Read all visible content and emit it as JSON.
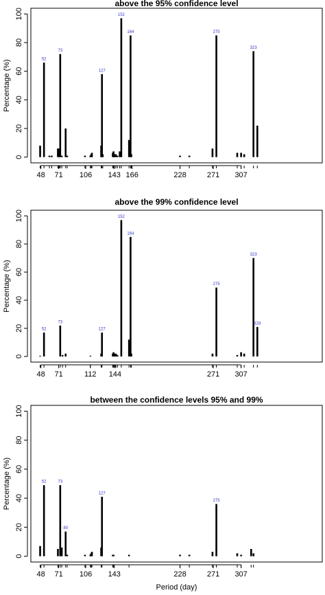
{
  "chart_data": [
    {
      "type": "bar",
      "title": "above the 95% confidence level",
      "ylabel": "Percentage (%)",
      "color": "#000000",
      "annotation_color": "#3333cc",
      "x": [
        47,
        52,
        59,
        62,
        70,
        72,
        73,
        75,
        80,
        82,
        105,
        112,
        113,
        114,
        126,
        127,
        128,
        141,
        142,
        143,
        145,
        147,
        150,
        152,
        162,
        164,
        165,
        228,
        240,
        270,
        275,
        302,
        307,
        311,
        323,
        328
      ],
      "values": [
        8,
        66,
        1,
        1,
        6,
        6,
        72,
        1,
        20,
        1,
        1,
        1,
        2,
        3,
        8,
        58,
        2,
        3,
        4,
        2,
        2,
        1,
        4,
        97,
        12,
        85,
        2,
        1,
        1,
        6,
        85,
        3,
        3,
        2,
        74,
        22
      ],
      "annotations": [
        52,
        73,
        127,
        152,
        164,
        275,
        323
      ],
      "xlim": [
        35,
        412
      ],
      "ylim": [
        -4,
        104
      ],
      "xticks": [
        48,
        71,
        106,
        143,
        166,
        228,
        271,
        307
      ],
      "yticks": [
        0,
        20,
        40,
        60,
        80,
        100
      ]
    },
    {
      "type": "bar",
      "title": "above the 99% confidence level",
      "ylabel": "Percentage (%)",
      "color": "#000000",
      "annotation_color": "#3333cc",
      "x": [
        47,
        52,
        73,
        76,
        80,
        112,
        126,
        127,
        141,
        142,
        143,
        145,
        147,
        152,
        162,
        164,
        165,
        270,
        275,
        302,
        307,
        311,
        323,
        328
      ],
      "values": [
        0.5,
        17,
        22,
        1,
        2,
        0.5,
        2,
        17,
        2,
        3,
        2,
        2,
        1,
        97,
        12,
        85,
        2,
        2,
        49,
        1,
        3,
        2,
        70,
        21
      ],
      "annotations": [
        52,
        73,
        127,
        152,
        164,
        275,
        323,
        328
      ],
      "xlim": [
        35,
        412
      ],
      "ylim": [
        -4,
        104
      ],
      "xticks": [
        48,
        71,
        112,
        144,
        271,
        307
      ],
      "yticks": [
        0,
        20,
        40,
        60,
        80,
        100
      ]
    },
    {
      "type": "bar",
      "title": "between the confidence levels 95% and 99%",
      "ylabel": "Percentage (%)",
      "xlabel": "Period (day)",
      "color": "#000000",
      "annotation_color": "#3333cc",
      "x": [
        47,
        52,
        70,
        73,
        75,
        80,
        82,
        105,
        112,
        113,
        114,
        126,
        127,
        141,
        142,
        162,
        228,
        240,
        270,
        275,
        302,
        307,
        320,
        323
      ],
      "values": [
        7,
        49,
        5,
        49,
        6,
        17,
        1,
        1,
        1,
        2,
        3,
        6,
        41,
        1,
        1,
        1,
        1,
        1,
        3,
        36,
        2,
        1,
        5,
        2
      ],
      "annotations": [
        52,
        73,
        80,
        127,
        275
      ],
      "xlim": [
        35,
        412
      ],
      "ylim": [
        -4,
        104
      ],
      "xticks": [
        48,
        71,
        106,
        143,
        228,
        271,
        307
      ],
      "yticks": [
        0,
        20,
        40,
        60,
        80,
        100
      ]
    }
  ]
}
